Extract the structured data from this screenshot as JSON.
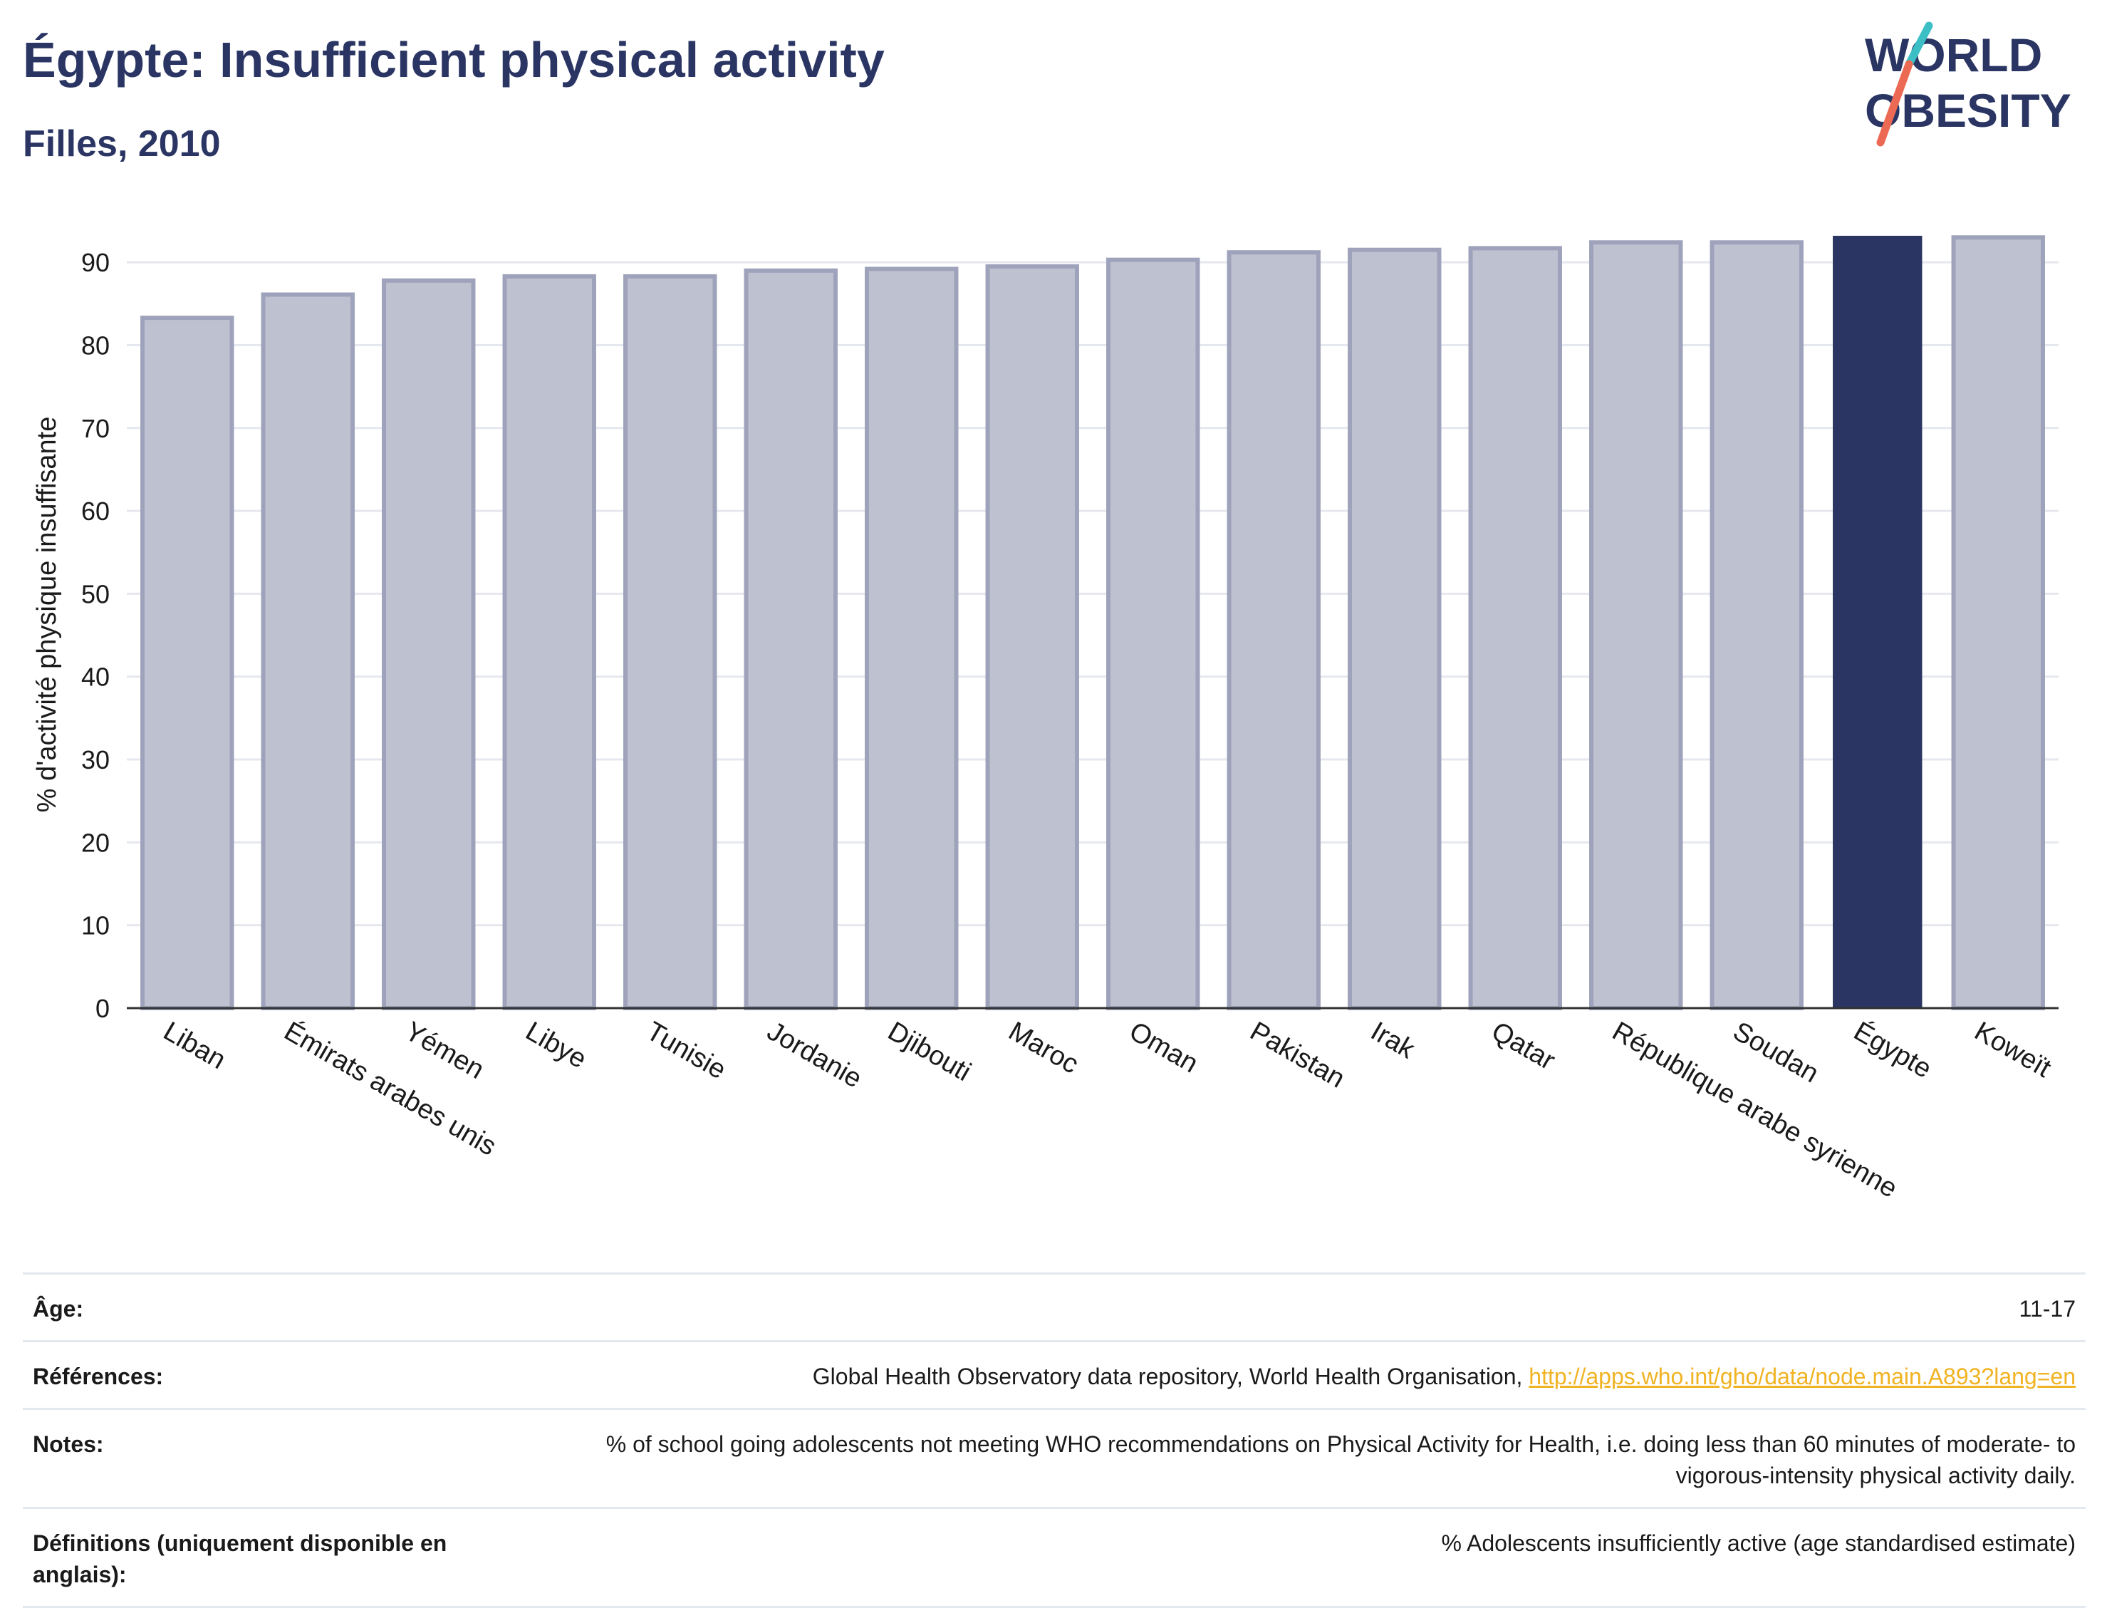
{
  "header": {
    "title": "Égypte: Insufficient physical activity",
    "subtitle": "Filles, 2010"
  },
  "logo": {
    "line1": "WORLD",
    "line2": "OBESITY",
    "accent_colors": [
      "#3cbfc4",
      "#ec6a54"
    ]
  },
  "colors": {
    "highlight_bar": "#2a3563",
    "other_bar_fill": "#bec1cf",
    "other_bar_stroke": "#9ea3bb",
    "gridline": "#e6e8ef",
    "text": "#2a3563"
  },
  "chart_data": {
    "type": "bar",
    "title": "Égypte: Insufficient physical activity",
    "subtitle": "Filles, 2010",
    "xlabel": "",
    "ylabel": "% d'activité physique insuffisante",
    "ylim": [
      0,
      95
    ],
    "yticks": [
      0,
      10,
      20,
      30,
      40,
      50,
      60,
      70,
      80,
      90
    ],
    "grid": true,
    "categories": [
      "Liban",
      "Émirats arabes unis",
      "Yémen",
      "Libye",
      "Tunisie",
      "Jordanie",
      "Djibouti",
      "Maroc",
      "Oman",
      "Pakistan",
      "Irak",
      "Qatar",
      "République arabe syrienne",
      "Soudan",
      "Égypte",
      "Koweït"
    ],
    "values": [
      83.3,
      86.1,
      87.8,
      88.3,
      88.3,
      89.0,
      89.2,
      89.5,
      90.3,
      91.2,
      91.5,
      91.7,
      92.4,
      92.4,
      93.2,
      93.0
    ],
    "highlight": "Égypte"
  },
  "info": {
    "rows": [
      {
        "label": "Âge:",
        "value": "11-17"
      },
      {
        "label": "Références:",
        "value": "Global Health Observatory data repository, World Health Organisation, ",
        "link": "http://apps.who.int/gho/data/node.main.A893?lang=en"
      },
      {
        "label": "Notes:",
        "value": "% of school going adolescents not meeting WHO recommendations on Physical Activity for Health, i.e. doing less than 60 minutes of moderate- to vigorous-intensity physical activity daily."
      },
      {
        "label": "Définitions (uniquement disponible en anglais):",
        "value": "% Adolescents insufficiently active (age standardised estimate)"
      }
    ]
  }
}
